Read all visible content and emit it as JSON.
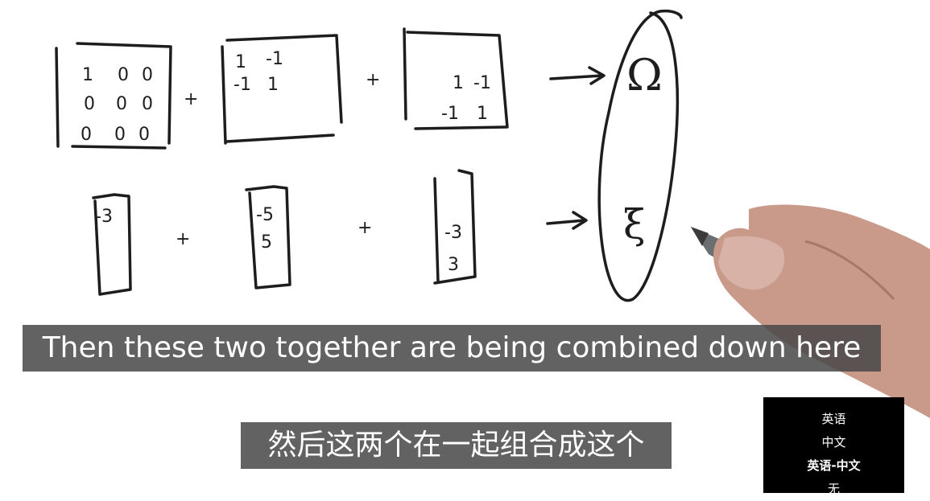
{
  "board": {
    "matrix1": {
      "rows": [
        [
          "1",
          "0",
          "0"
        ],
        [
          "0",
          "0",
          "0"
        ],
        [
          "0",
          "0",
          "0"
        ]
      ]
    },
    "matrix2": {
      "rows": [
        [
          "1",
          "-1"
        ],
        [
          "-1",
          "1"
        ]
      ]
    },
    "matrix3": {
      "rows": [
        [
          "1",
          "-1"
        ],
        [
          "-1",
          "1"
        ]
      ]
    },
    "vector1": {
      "values": [
        "-3"
      ]
    },
    "vector2": {
      "values": [
        "-5",
        "5"
      ]
    },
    "vector3": {
      "values": [
        "-3",
        "3"
      ]
    },
    "plus_sign": "+",
    "omega_symbol": "Ω",
    "xi_symbol": "ξ"
  },
  "subtitles": {
    "english": "Then these two together are being combined down here",
    "chinese": "然后这两个在一起组合成这个"
  },
  "language_menu": {
    "items": [
      {
        "label": "英语",
        "active": false
      },
      {
        "label": "中文",
        "active": false
      },
      {
        "label": "英语-中文",
        "active": true
      },
      {
        "label": "无",
        "active": false
      }
    ]
  }
}
